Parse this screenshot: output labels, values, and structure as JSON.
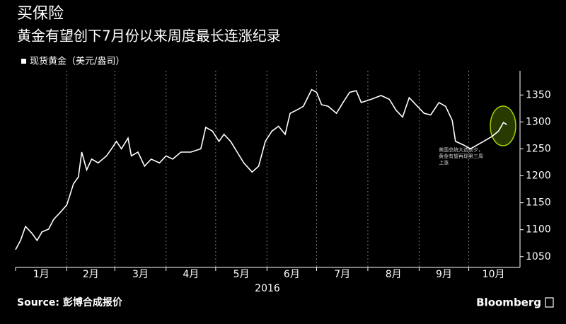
{
  "chart_data": {
    "type": "line",
    "title": "买保险",
    "subtitle": "黄金有望创下7月份以来周度最长连涨纪录",
    "x_label": "2016",
    "annotation": "美国总统大选前夕，黄金有望再现第三周上涨",
    "source": "Source: 彭博合成报价",
    "brand": "Bloomberg",
    "x": [
      0,
      3,
      6,
      10,
      13,
      16,
      20,
      23,
      27,
      31,
      35,
      38,
      40,
      43,
      46,
      50,
      55,
      58,
      61,
      64,
      68,
      70,
      74,
      78,
      82,
      87,
      91,
      95,
      100,
      106,
      112,
      115,
      119,
      123,
      126,
      130,
      134,
      138,
      143,
      147,
      151,
      155,
      159,
      163,
      166,
      170,
      174,
      179,
      182,
      185,
      189,
      194,
      198,
      202,
      206,
      209,
      215,
      221,
      226,
      230,
      234,
      238,
      243,
      247,
      251,
      256,
      260,
      264,
      266,
      271,
      275,
      279,
      283,
      288,
      292,
      295,
      297
    ],
    "series": [
      {
        "name": "现货黄金（美元/盎司）",
        "color": "#ffffff",
        "values": [
          1063,
          1080,
          1106,
          1093,
          1080,
          1096,
          1101,
          1119,
          1132,
          1146,
          1185,
          1198,
          1244,
          1211,
          1231,
          1224,
          1237,
          1250,
          1264,
          1250,
          1270,
          1237,
          1244,
          1218,
          1231,
          1224,
          1237,
          1231,
          1244,
          1244,
          1250,
          1290,
          1283,
          1264,
          1277,
          1264,
          1244,
          1224,
          1207,
          1218,
          1264,
          1283,
          1292,
          1277,
          1316,
          1322,
          1329,
          1360,
          1355,
          1332,
          1329,
          1316,
          1336,
          1355,
          1358,
          1336,
          1342,
          1349,
          1342,
          1322,
          1309,
          1345,
          1329,
          1316,
          1313,
          1336,
          1329,
          1303,
          1264,
          1257,
          1250,
          1257,
          1264,
          1273,
          1283,
          1299,
          1295
        ]
      }
    ],
    "xlim": [
      0,
      305
    ],
    "ylim": [
      1030,
      1395
    ],
    "xticks": [
      {
        "value": 0,
        "label": "1月"
      },
      {
        "value": 31,
        "label": "2月"
      },
      {
        "value": 60,
        "label": "3月"
      },
      {
        "value": 91,
        "label": "4月"
      },
      {
        "value": 121,
        "label": "5月"
      },
      {
        "value": 152,
        "label": "6月"
      },
      {
        "value": 182,
        "label": "7月"
      },
      {
        "value": 213,
        "label": "8月"
      },
      {
        "value": 244,
        "label": "9月"
      },
      {
        "value": 274,
        "label": "10月"
      }
    ],
    "yticks": [
      1050,
      1100,
      1150,
      1200,
      1250,
      1300,
      1350
    ],
    "grid": true
  }
}
